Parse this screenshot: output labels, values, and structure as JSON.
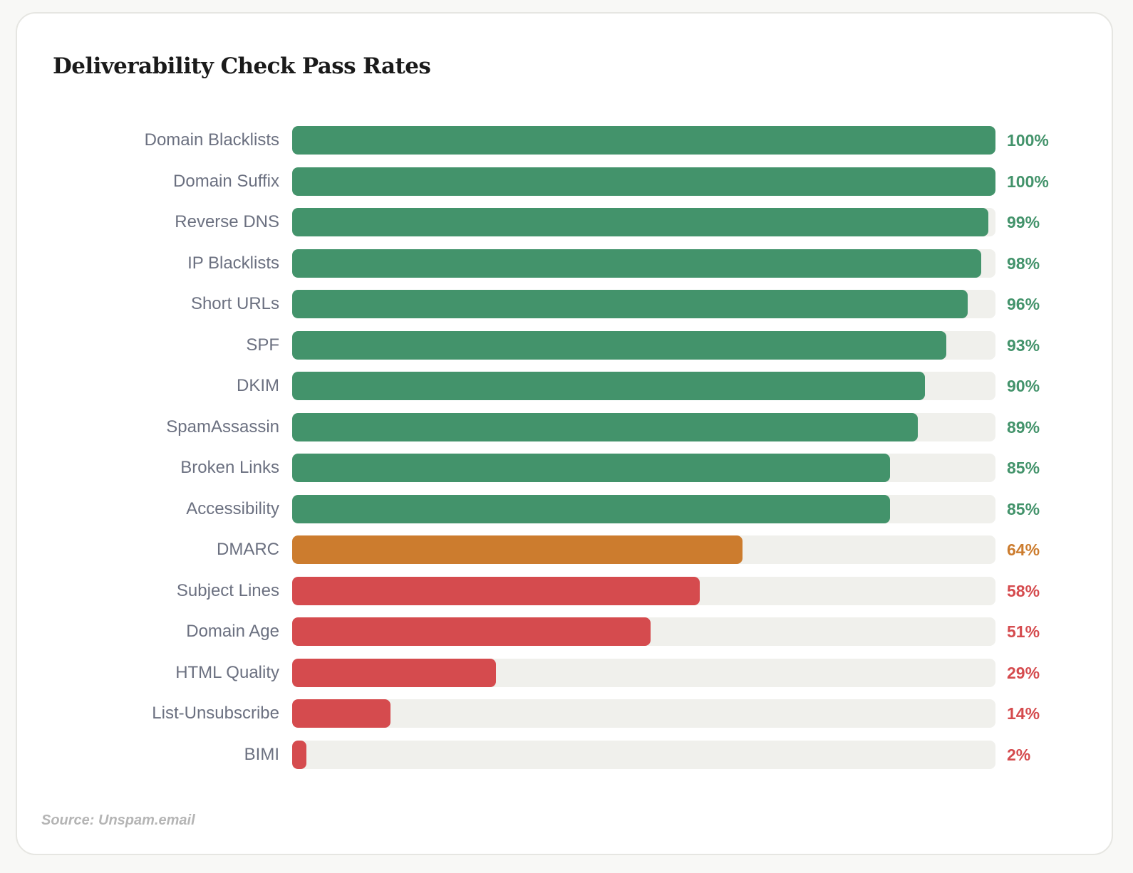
{
  "chart_data": {
    "type": "bar",
    "orientation": "horizontal",
    "title": "Deliverability Check Pass Rates",
    "xlim": [
      0,
      100
    ],
    "grid": false,
    "categories": [
      "Domain Blacklists",
      "Domain Suffix",
      "Reverse DNS",
      "IP Blacklists",
      "Short URLs",
      "SPF",
      "DKIM",
      "SpamAssassin",
      "Broken Links",
      "Accessibility",
      "DMARC",
      "Subject Lines",
      "Domain Age",
      "HTML Quality",
      "List-Unsubscribe",
      "BIMI"
    ],
    "values": [
      100,
      100,
      99,
      98,
      96,
      93,
      90,
      89,
      85,
      85,
      64,
      58,
      51,
      29,
      14,
      2
    ],
    "value_labels": [
      "100%",
      "100%",
      "99%",
      "98%",
      "96%",
      "93%",
      "90%",
      "89%",
      "85%",
      "85%",
      "64%",
      "58%",
      "51%",
      "29%",
      "14%",
      "2%"
    ],
    "status": [
      "good",
      "good",
      "good",
      "good",
      "good",
      "good",
      "good",
      "good",
      "good",
      "good",
      "warn",
      "bad",
      "bad",
      "bad",
      "bad",
      "bad"
    ],
    "source": "Source: Unspam.email"
  },
  "colors": {
    "good": "#43936b",
    "warn": "#cc7c2e",
    "bad": "#d54b4e",
    "track": "#f0f0ec"
  }
}
